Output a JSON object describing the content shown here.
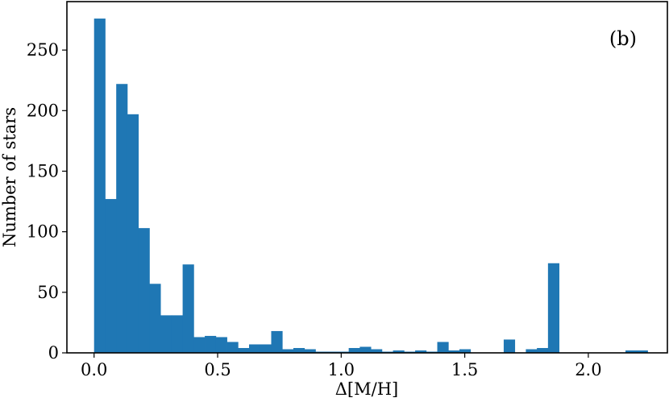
{
  "chart_data": {
    "type": "bar",
    "title": "",
    "panel_label": "(b)",
    "xlabel": "Δ[M/H]",
    "ylabel": "Number of stars",
    "xlim": [
      -0.11,
      2.32
    ],
    "ylim": [
      0,
      290
    ],
    "xticks": [
      0.0,
      0.5,
      1.0,
      1.5,
      2.0
    ],
    "xtick_labels": [
      "0.0",
      "0.5",
      "1.0",
      "1.5",
      "2.0"
    ],
    "yticks": [
      0,
      50,
      100,
      150,
      200,
      250
    ],
    "ytick_labels": [
      "0",
      "50",
      "100",
      "150",
      "200",
      "250"
    ],
    "grid": false,
    "legend": "none",
    "bar_color": "#1f77b4",
    "bin_start": 0.0,
    "bin_width": 0.0448,
    "values": [
      276,
      127,
      222,
      197,
      103,
      57,
      31,
      31,
      73,
      13,
      14,
      13,
      9,
      4,
      7,
      7,
      18,
      3,
      4,
      3,
      1,
      1,
      1,
      4,
      5,
      3,
      1,
      2,
      1,
      2,
      1,
      9,
      2,
      3,
      0,
      0,
      0,
      11,
      0,
      3,
      4,
      74,
      0,
      0,
      0,
      0,
      0,
      0,
      2,
      2
    ]
  }
}
